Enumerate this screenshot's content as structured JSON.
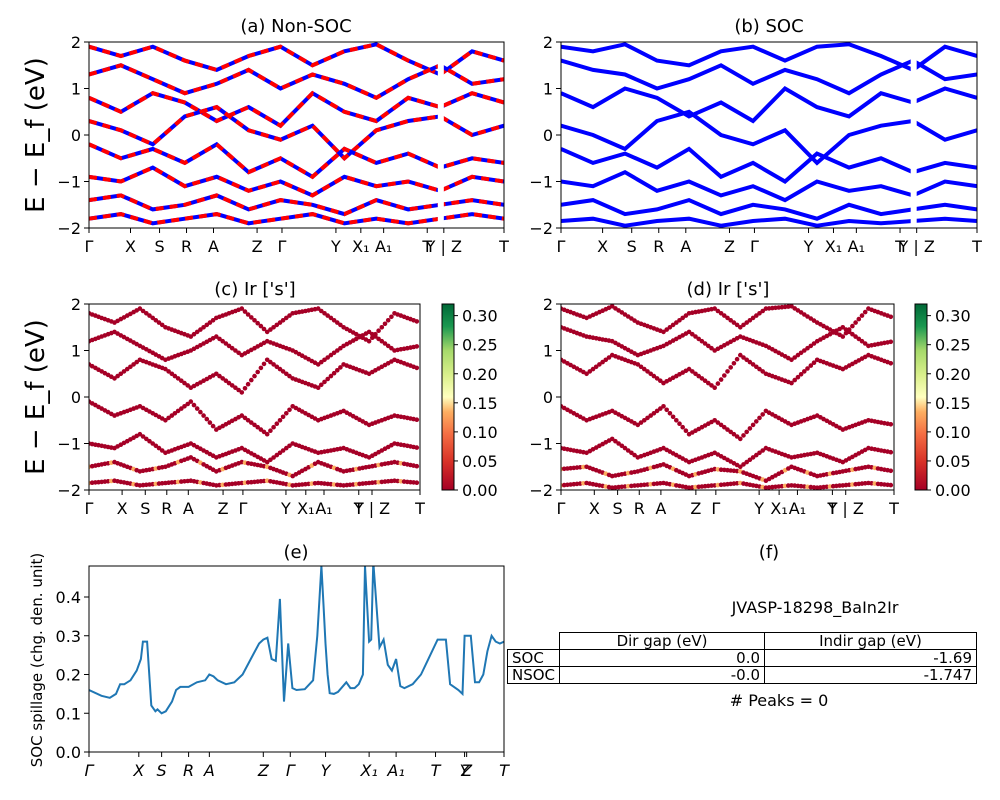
{
  "chart_data": [
    {
      "id": "a",
      "type": "line",
      "title": "(a) Non-SOC",
      "ylabel": "E − E_f (eV)",
      "ylim": [
        -2,
        2
      ],
      "yticks": [
        "2",
        "1",
        "0",
        "−1",
        "−2"
      ],
      "xticks": [
        "Γ",
        "X",
        "S",
        "R",
        "A",
        "Z",
        "Γ",
        "Y",
        "X₁",
        "A₁",
        "T",
        "Y | Z",
        "T"
      ],
      "xtick_pos": [
        0,
        0.1,
        0.17,
        0.235,
        0.3,
        0.405,
        0.465,
        0.595,
        0.655,
        0.71,
        0.815,
        0.855,
        1.0
      ],
      "colors": {
        "up": "#0000ff",
        "down": "#ff0000"
      },
      "series": [
        {
          "values": [
            1.9,
            1.7,
            1.9,
            1.6,
            1.4,
            1.7,
            1.9,
            1.5,
            1.8,
            1.95,
            1.6,
            1.3,
            1.8,
            1.6
          ]
        },
        {
          "values": [
            1.3,
            1.5,
            1.2,
            0.9,
            1.1,
            1.4,
            1.0,
            1.3,
            1.1,
            0.8,
            1.2,
            1.5,
            1.1,
            1.2
          ]
        },
        {
          "values": [
            0.8,
            0.5,
            0.9,
            0.7,
            0.3,
            0.6,
            0.2,
            0.9,
            0.5,
            0.3,
            0.8,
            0.6,
            0.9,
            0.7
          ]
        },
        {
          "values": [
            0.3,
            0.1,
            -0.2,
            0.4,
            0.6,
            0.1,
            -0.1,
            0.2,
            -0.5,
            0.1,
            0.3,
            0.4,
            0.0,
            0.2
          ]
        },
        {
          "values": [
            -0.2,
            -0.5,
            -0.3,
            -0.6,
            -0.2,
            -0.8,
            -0.5,
            -0.9,
            -0.3,
            -0.6,
            -0.4,
            -0.7,
            -0.5,
            -0.6
          ]
        },
        {
          "values": [
            -0.9,
            -1.0,
            -0.7,
            -1.1,
            -0.9,
            -1.2,
            -1.0,
            -1.3,
            -0.9,
            -1.1,
            -1.0,
            -1.2,
            -0.9,
            -1.0
          ]
        },
        {
          "values": [
            -1.4,
            -1.3,
            -1.6,
            -1.5,
            -1.3,
            -1.6,
            -1.4,
            -1.5,
            -1.7,
            -1.4,
            -1.6,
            -1.5,
            -1.4,
            -1.5
          ]
        },
        {
          "values": [
            -1.8,
            -1.7,
            -1.9,
            -1.8,
            -1.7,
            -1.9,
            -1.8,
            -1.7,
            -1.9,
            -1.8,
            -1.9,
            -1.8,
            -1.7,
            -1.8
          ]
        }
      ]
    },
    {
      "id": "b",
      "type": "line",
      "title": "(b) SOC",
      "ylim": [
        -2,
        2
      ],
      "yticks": [
        "2",
        "1",
        "0",
        "−1",
        "−2"
      ],
      "xticks": [
        "Γ",
        "X",
        "S",
        "R",
        "A",
        "Z",
        "Γ",
        "Y",
        "X₁",
        "A₁",
        "T",
        "Y | Z",
        "T"
      ],
      "xtick_pos": [
        0,
        0.1,
        0.17,
        0.235,
        0.3,
        0.405,
        0.465,
        0.595,
        0.655,
        0.71,
        0.815,
        0.855,
        1.0
      ],
      "colors": {
        "line": "#0000ff"
      },
      "series": [
        {
          "values": [
            1.9,
            1.8,
            1.95,
            1.6,
            1.5,
            1.8,
            1.9,
            1.6,
            1.9,
            1.95,
            1.7,
            1.4,
            1.9,
            1.7
          ]
        },
        {
          "values": [
            1.6,
            1.4,
            1.3,
            1.0,
            1.2,
            1.5,
            1.1,
            1.4,
            1.2,
            0.9,
            1.3,
            1.6,
            1.2,
            1.3
          ]
        },
        {
          "values": [
            0.9,
            0.6,
            1.0,
            0.8,
            0.4,
            0.7,
            0.3,
            1.0,
            0.6,
            0.4,
            0.9,
            0.7,
            1.0,
            0.8
          ]
        },
        {
          "values": [
            0.2,
            0.0,
            -0.3,
            0.3,
            0.5,
            0.0,
            -0.2,
            0.1,
            -0.6,
            0.0,
            0.2,
            0.3,
            -0.1,
            0.1
          ]
        },
        {
          "values": [
            -0.3,
            -0.6,
            -0.4,
            -0.7,
            -0.3,
            -0.9,
            -0.6,
            -1.0,
            -0.4,
            -0.7,
            -0.5,
            -0.8,
            -0.6,
            -0.7
          ]
        },
        {
          "values": [
            -1.0,
            -1.1,
            -0.8,
            -1.2,
            -1.0,
            -1.3,
            -1.1,
            -1.4,
            -1.0,
            -1.2,
            -1.1,
            -1.3,
            -1.0,
            -1.1
          ]
        },
        {
          "values": [
            -1.5,
            -1.4,
            -1.7,
            -1.6,
            -1.4,
            -1.7,
            -1.5,
            -1.6,
            -1.8,
            -1.5,
            -1.7,
            -1.6,
            -1.5,
            -1.6
          ]
        },
        {
          "values": [
            -1.85,
            -1.8,
            -1.95,
            -1.85,
            -1.8,
            -1.95,
            -1.85,
            -1.8,
            -1.95,
            -1.85,
            -1.9,
            -1.85,
            -1.8,
            -1.85
          ]
        }
      ]
    },
    {
      "id": "c",
      "type": "scatter",
      "title": "(c)  Ir ['s']",
      "ylabel": "E − E_f (eV)",
      "ylim": [
        -2,
        2
      ],
      "yticks": [
        "2",
        "1",
        "0",
        "−1",
        "−2"
      ],
      "xticks": [
        "Γ",
        "X",
        "S",
        "R",
        "A",
        "Z",
        "Γ",
        "Y",
        "X₁",
        "A₁",
        "T",
        "Y | Z",
        "T"
      ],
      "xtick_pos": [
        0,
        0.1,
        0.17,
        0.235,
        0.3,
        0.405,
        0.465,
        0.595,
        0.655,
        0.71,
        0.815,
        0.855,
        1.0
      ],
      "colorbar": {
        "ticks": [
          "0.30",
          "0.25",
          "0.20",
          "0.15",
          "0.10",
          "0.05",
          "0.00"
        ],
        "range": [
          0,
          0.32
        ]
      },
      "series": [
        {
          "values": [
            1.8,
            1.6,
            1.9,
            1.5,
            1.3,
            1.7,
            1.9,
            1.4,
            1.8,
            1.9,
            1.5,
            1.2,
            1.8,
            1.6
          ]
        },
        {
          "values": [
            1.2,
            1.4,
            1.1,
            0.8,
            1.0,
            1.3,
            0.9,
            1.2,
            1.0,
            0.7,
            1.1,
            1.4,
            1.0,
            1.1
          ]
        },
        {
          "values": [
            0.7,
            0.4,
            0.8,
            0.6,
            0.2,
            0.5,
            0.1,
            0.8,
            0.4,
            0.2,
            0.7,
            0.5,
            0.8,
            0.6
          ]
        },
        {
          "values": [
            -0.1,
            -0.4,
            -0.2,
            -0.5,
            -0.1,
            -0.7,
            -0.4,
            -0.8,
            -0.2,
            -0.5,
            -0.3,
            -0.6,
            -0.4,
            -0.5
          ]
        },
        {
          "values": [
            -1.0,
            -1.1,
            -0.8,
            -1.2,
            -1.0,
            -1.3,
            -1.1,
            -1.4,
            -1.0,
            -1.2,
            -1.1,
            -1.3,
            -1.0,
            -1.1
          ]
        },
        {
          "values": [
            -1.5,
            -1.4,
            -1.6,
            -1.5,
            -1.3,
            -1.6,
            -1.4,
            -1.5,
            -1.7,
            -1.4,
            -1.6,
            -1.5,
            -1.4,
            -1.5
          ]
        },
        {
          "values": [
            -1.85,
            -1.8,
            -1.9,
            -1.85,
            -1.8,
            -1.9,
            -1.85,
            -1.8,
            -1.9,
            -1.85,
            -1.9,
            -1.85,
            -1.8,
            -1.85
          ]
        }
      ]
    },
    {
      "id": "d",
      "type": "scatter",
      "title": "(d) Ir ['s']",
      "ylim": [
        -2,
        2
      ],
      "yticks": [
        "2",
        "1",
        "0",
        "−1",
        "−2"
      ],
      "xticks": [
        "Γ",
        "X",
        "S",
        "R",
        "A",
        "Z",
        "Γ",
        "Y",
        "X₁",
        "A₁",
        "T",
        "Y | Z",
        "T"
      ],
      "xtick_pos": [
        0,
        0.1,
        0.17,
        0.235,
        0.3,
        0.405,
        0.465,
        0.595,
        0.655,
        0.71,
        0.815,
        0.855,
        1.0
      ],
      "colorbar": {
        "ticks": [
          "0.30",
          "0.25",
          "0.20",
          "0.15",
          "0.10",
          "0.05",
          "0.00"
        ],
        "range": [
          0,
          0.32
        ]
      },
      "series": [
        {
          "values": [
            1.9,
            1.7,
            1.95,
            1.6,
            1.4,
            1.8,
            1.9,
            1.5,
            1.9,
            1.95,
            1.6,
            1.3,
            1.9,
            1.7
          ]
        },
        {
          "values": [
            1.5,
            1.3,
            1.2,
            0.9,
            1.1,
            1.4,
            1.0,
            1.3,
            1.1,
            0.8,
            1.2,
            1.5,
            1.1,
            1.2
          ]
        },
        {
          "values": [
            0.8,
            0.5,
            0.9,
            0.7,
            0.3,
            0.6,
            0.2,
            0.9,
            0.5,
            0.3,
            0.8,
            0.6,
            0.9,
            0.7
          ]
        },
        {
          "values": [
            -0.2,
            -0.5,
            -0.3,
            -0.6,
            -0.2,
            -0.8,
            -0.5,
            -0.9,
            -0.3,
            -0.6,
            -0.4,
            -0.7,
            -0.5,
            -0.6
          ]
        },
        {
          "values": [
            -1.1,
            -1.2,
            -0.9,
            -1.3,
            -1.1,
            -1.4,
            -1.2,
            -1.5,
            -1.1,
            -1.3,
            -1.2,
            -1.4,
            -1.1,
            -1.2
          ]
        },
        {
          "values": [
            -1.55,
            -1.5,
            -1.7,
            -1.6,
            -1.45,
            -1.7,
            -1.55,
            -1.6,
            -1.8,
            -1.5,
            -1.7,
            -1.6,
            -1.5,
            -1.6
          ]
        },
        {
          "values": [
            -1.9,
            -1.85,
            -1.95,
            -1.9,
            -1.85,
            -1.95,
            -1.9,
            -1.85,
            -1.95,
            -1.9,
            -1.95,
            -1.9,
            -1.85,
            -1.9
          ]
        }
      ]
    },
    {
      "id": "e",
      "type": "line",
      "title": "(e)",
      "ylabel": "SOC spillage (chg. den. unit)",
      "ylim": [
        0,
        0.48
      ],
      "yticks": [
        "0.0",
        "0.1",
        "0.2",
        "0.3",
        "0.4"
      ],
      "ytick_vals": [
        0,
        0.1,
        0.2,
        0.3,
        0.4
      ],
      "xticks": [
        "Γ",
        "X",
        "S",
        "R",
        "A",
        "Z",
        "Γ",
        "Y",
        "X₁",
        "A₁",
        "T",
        "Y",
        "Z",
        "T"
      ],
      "xtick_pos": [
        0,
        0.12,
        0.175,
        0.24,
        0.29,
        0.42,
        0.485,
        0.57,
        0.675,
        0.74,
        0.835,
        0.905,
        0.91,
        1.0
      ],
      "colors": {
        "line": "#1f77b4"
      },
      "x": [
        0,
        0.03,
        0.05,
        0.065,
        0.075,
        0.085,
        0.1,
        0.115,
        0.125,
        0.13,
        0.14,
        0.15,
        0.16,
        0.165,
        0.175,
        0.185,
        0.2,
        0.21,
        0.22,
        0.23,
        0.24,
        0.26,
        0.28,
        0.29,
        0.3,
        0.31,
        0.33,
        0.35,
        0.37,
        0.39,
        0.41,
        0.42,
        0.43,
        0.44,
        0.45,
        0.46,
        0.47,
        0.48,
        0.49,
        0.5,
        0.52,
        0.54,
        0.55,
        0.56,
        0.565,
        0.57,
        0.575,
        0.58,
        0.59,
        0.6,
        0.62,
        0.63,
        0.64,
        0.65,
        0.66,
        0.665,
        0.67,
        0.675,
        0.68,
        0.685,
        0.69,
        0.7,
        0.71,
        0.72,
        0.73,
        0.74,
        0.75,
        0.76,
        0.78,
        0.8,
        0.82,
        0.84,
        0.845,
        0.85,
        0.86,
        0.87,
        0.89,
        0.9,
        0.905,
        0.91,
        0.92,
        0.93,
        0.94,
        0.95,
        0.96,
        0.97,
        0.98,
        0.99,
        1.0
      ],
      "values": [
        0.16,
        0.145,
        0.14,
        0.15,
        0.175,
        0.175,
        0.185,
        0.21,
        0.24,
        0.285,
        0.285,
        0.12,
        0.105,
        0.11,
        0.1,
        0.105,
        0.13,
        0.16,
        0.168,
        0.168,
        0.168,
        0.18,
        0.185,
        0.2,
        0.195,
        0.185,
        0.175,
        0.18,
        0.2,
        0.24,
        0.28,
        0.29,
        0.295,
        0.24,
        0.235,
        0.395,
        0.13,
        0.28,
        0.165,
        0.16,
        0.162,
        0.185,
        0.3,
        0.48,
        0.38,
        0.28,
        0.2,
        0.152,
        0.15,
        0.155,
        0.18,
        0.165,
        0.165,
        0.175,
        0.2,
        0.48,
        0.38,
        0.285,
        0.29,
        0.49,
        0.42,
        0.27,
        0.29,
        0.225,
        0.21,
        0.24,
        0.17,
        0.165,
        0.175,
        0.2,
        0.245,
        0.29,
        0.29,
        0.29,
        0.29,
        0.175,
        0.16,
        0.15,
        0.3,
        0.3,
        0.3,
        0.18,
        0.18,
        0.2,
        0.26,
        0.3,
        0.285,
        0.28,
        0.285
      ]
    }
  ],
  "panel_f": {
    "title": "(f)",
    "material": "JVASP-18298_BaIn2Ir",
    "table": {
      "headers": [
        "Dir gap (eV)",
        "Indir gap (eV)"
      ],
      "rows": [
        {
          "label": "SOC",
          "dir": "0.0",
          "indir": "-1.69"
        },
        {
          "label": "NSOC",
          "dir": "-0.0",
          "indir": "-1.747"
        }
      ]
    },
    "peaks": "# Peaks = 0"
  }
}
